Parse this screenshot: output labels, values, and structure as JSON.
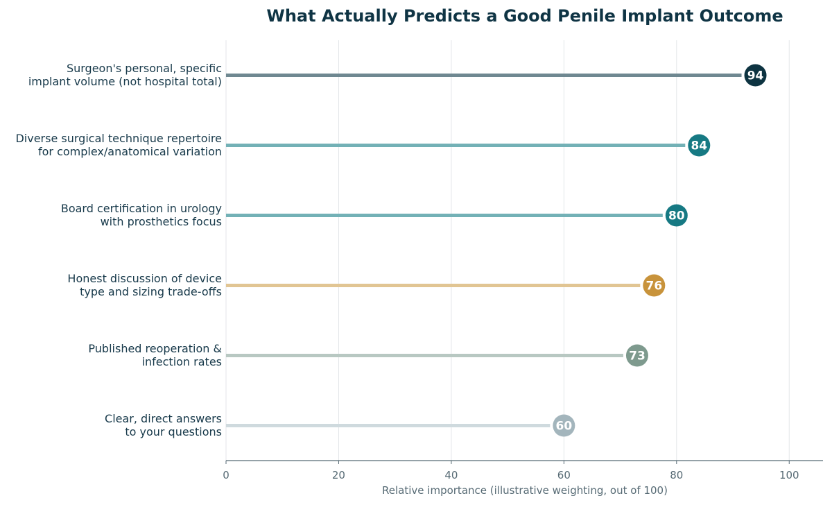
{
  "chart_data": {
    "type": "lollipop",
    "title": "What Actually Predicts a Good Penile Implant Outcome",
    "xlabel": "Relative importance (illustrative weighting, out of 100)",
    "ylabel": "",
    "xlim": [
      0,
      106
    ],
    "x_ticks": [
      0,
      20,
      40,
      60,
      80,
      100
    ],
    "grid": "vertical",
    "orientation": "horizontal",
    "items": [
      {
        "label": [
          "Surgeon's personal, specific",
          "implant volume (not hospital total)"
        ],
        "value": 94,
        "dot_color": "#0d3341",
        "line_color": "#6f8891"
      },
      {
        "label": [
          "Diverse surgical technique repertoire",
          "for complex/anatomical variation"
        ],
        "value": 84,
        "dot_color": "#167983",
        "line_color": "#73b1b6"
      },
      {
        "label": [
          "Board certification in urology",
          "with prosthetics focus"
        ],
        "value": 80,
        "dot_color": "#167983",
        "line_color": "#73b1b6"
      },
      {
        "label": [
          "Honest discussion of device",
          "type and sizing trade-offs"
        ],
        "value": 76,
        "dot_color": "#c8933b",
        "line_color": "#e1c593"
      },
      {
        "label": [
          "Published reoperation &",
          "infection rates"
        ],
        "value": 73,
        "dot_color": "#7e9a8e",
        "line_color": "#b8c8c2"
      },
      {
        "label": [
          "Clear, direct answers",
          "to your questions"
        ],
        "value": 60,
        "dot_color": "#a3b5bc",
        "line_color": "#cfdade"
      }
    ]
  }
}
